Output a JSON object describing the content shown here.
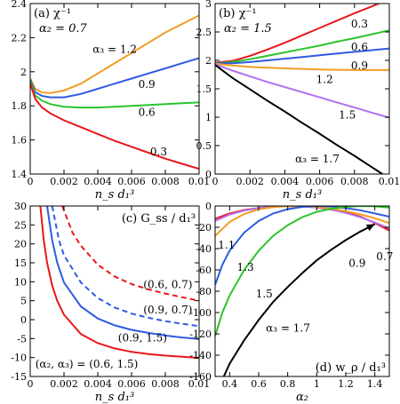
{
  "chart_data": [
    {
      "id": "a",
      "type": "line",
      "title": "(a) χ⁻¹",
      "param_label": "α₂ = 0.7",
      "xlabel": "n_s d₁³",
      "xlim": [
        0,
        0.01
      ],
      "ylim": [
        1.4,
        2.4
      ],
      "xticks": [
        0,
        0.002,
        0.004,
        0.006,
        0.008,
        0.01
      ],
      "xtick_labels": [
        "0",
        "0.002",
        "0.004",
        "0.006",
        "0.008",
        "0.01"
      ],
      "yticks": [
        1.4,
        1.6,
        1.8,
        2.0,
        2.2,
        2.4
      ],
      "ytick_labels": [
        "1.4",
        "1.6",
        "1.8",
        "2",
        "2.2",
        "2.4"
      ],
      "series": [
        {
          "name": "α₃ = 1.2",
          "color": "#f39c1f",
          "x": [
            0,
            0.0003,
            0.0007,
            0.0012,
            0.002,
            0.003,
            0.004,
            0.005,
            0.006,
            0.007,
            0.008,
            0.009,
            0.01
          ],
          "y": [
            1.96,
            1.9,
            1.878,
            1.875,
            1.89,
            1.93,
            1.99,
            2.05,
            2.11,
            2.17,
            2.23,
            2.28,
            2.33
          ]
        },
        {
          "name": "0.9",
          "color": "#2d5be3",
          "x": [
            0,
            0.0003,
            0.0007,
            0.0012,
            0.002,
            0.003,
            0.004,
            0.005,
            0.006,
            0.007,
            0.008,
            0.009,
            0.01
          ],
          "y": [
            1.95,
            1.88,
            1.858,
            1.85,
            1.85,
            1.87,
            1.9,
            1.93,
            1.96,
            1.99,
            2.02,
            2.05,
            2.08
          ]
        },
        {
          "name": "0.6",
          "color": "#2bc42b",
          "x": [
            0,
            0.0003,
            0.0007,
            0.0012,
            0.002,
            0.003,
            0.004,
            0.005,
            0.006,
            0.007,
            0.008,
            0.009,
            0.01
          ],
          "y": [
            1.94,
            1.86,
            1.83,
            1.81,
            1.795,
            1.79,
            1.79,
            1.795,
            1.8,
            1.805,
            1.81,
            1.815,
            1.82
          ]
        },
        {
          "name": "0.3",
          "color": "#e8171b",
          "x": [
            0,
            0.0003,
            0.0007,
            0.0012,
            0.002,
            0.003,
            0.004,
            0.005,
            0.006,
            0.007,
            0.008,
            0.009,
            0.01
          ],
          "y": [
            1.93,
            1.84,
            1.79,
            1.755,
            1.715,
            1.675,
            1.635,
            1.595,
            1.56,
            1.525,
            1.49,
            1.46,
            1.43
          ]
        }
      ],
      "series_labels": [
        {
          "text": "α₃ = 1.2",
          "x": 0.0037,
          "y": 2.11
        },
        {
          "text": "0.9",
          "x": 0.0064,
          "y": 1.905
        },
        {
          "text": "0.6",
          "x": 0.0064,
          "y": 1.74
        },
        {
          "text": "0.3",
          "x": 0.0071,
          "y": 1.51
        }
      ]
    },
    {
      "id": "b",
      "type": "line",
      "title": "(b) χ⁻¹",
      "param_label": "α₂ = 1.5",
      "xlabel": "n_s d₁³",
      "xlim": [
        0,
        0.01
      ],
      "ylim": [
        0,
        3
      ],
      "xticks": [
        0,
        0.002,
        0.004,
        0.006,
        0.008,
        0.01
      ],
      "xtick_labels": [
        "0",
        "0.002",
        "0.004",
        "0.006",
        "0.008",
        "0.01"
      ],
      "yticks": [
        0,
        0.5,
        1.0,
        1.5,
        2.0,
        2.5,
        3.0
      ],
      "ytick_labels": [
        "0",
        "0.5",
        "1",
        "1.5",
        "2",
        "2.5",
        "3"
      ],
      "series": [
        {
          "name": "0.3",
          "color": "#e8171b",
          "x": [
            0,
            0.001,
            0.002,
            0.003,
            0.004,
            0.005,
            0.006,
            0.007,
            0.008,
            0.009,
            0.01
          ],
          "y": [
            1.96,
            1.99,
            2.08,
            2.19,
            2.31,
            2.44,
            2.57,
            2.7,
            2.83,
            2.95,
            3.08
          ]
        },
        {
          "name": "0.6",
          "color": "#2bc42b",
          "x": [
            0,
            0.001,
            0.002,
            0.003,
            0.004,
            0.005,
            0.006,
            0.007,
            0.008,
            0.009,
            0.01
          ],
          "y": [
            1.95,
            1.97,
            2.02,
            2.08,
            2.14,
            2.2,
            2.26,
            2.33,
            2.39,
            2.46,
            2.53
          ]
        },
        {
          "name": "0.9",
          "color": "#2d5be3",
          "x": [
            0,
            0.001,
            0.002,
            0.003,
            0.004,
            0.005,
            0.006,
            0.007,
            0.008,
            0.009,
            0.01
          ],
          "y": [
            1.95,
            1.95,
            1.97,
            2.0,
            2.03,
            2.06,
            2.09,
            2.12,
            2.15,
            2.18,
            2.21
          ]
        },
        {
          "name": "1.2",
          "color": "#f39c1f",
          "x": [
            0,
            0.001,
            0.002,
            0.003,
            0.004,
            0.005,
            0.006,
            0.007,
            0.008,
            0.009,
            0.01
          ],
          "y": [
            1.94,
            1.91,
            1.885,
            1.87,
            1.86,
            1.85,
            1.84,
            1.835,
            1.83,
            1.83,
            1.83
          ]
        },
        {
          "name": "1.5",
          "color": "#b36ff0",
          "x": [
            0,
            0.001,
            0.002,
            0.003,
            0.004,
            0.005,
            0.006,
            0.007,
            0.008,
            0.009,
            0.01
          ],
          "y": [
            1.93,
            1.82,
            1.72,
            1.62,
            1.53,
            1.44,
            1.35,
            1.26,
            1.17,
            1.08,
            0.99
          ]
        },
        {
          "name": "α₃ = 1.7",
          "color": "#000000",
          "x": [
            0,
            0.001,
            0.002,
            0.003,
            0.004,
            0.005,
            0.006,
            0.007,
            0.008,
            0.009,
            0.0096
          ],
          "y": [
            1.92,
            1.69,
            1.49,
            1.29,
            1.1,
            0.9,
            0.71,
            0.51,
            0.32,
            0.12,
            0.0
          ]
        }
      ],
      "series_labels": [
        {
          "text": "0.3",
          "x": 0.0078,
          "y": 2.58
        },
        {
          "text": "0.6",
          "x": 0.0078,
          "y": 2.17
        },
        {
          "text": "0.9",
          "x": 0.0078,
          "y": 1.84
        },
        {
          "text": "1.2",
          "x": 0.0058,
          "y": 1.6
        },
        {
          "text": "1.5",
          "x": 0.0071,
          "y": 0.98
        },
        {
          "text": "α₃ = 1.7",
          "x": 0.0046,
          "y": 0.2
        }
      ]
    },
    {
      "id": "c",
      "type": "line",
      "title": "(c) G_ss / d₁³",
      "param_label": "(α₂, α₃) = (0.6, 1.5)",
      "xlabel": "n_s d₁³",
      "xlim": [
        0,
        0.01
      ],
      "ylim": [
        -15,
        30
      ],
      "xticks": [
        0,
        0.002,
        0.004,
        0.006,
        0.008,
        0.01
      ],
      "xtick_labels": [
        "0",
        "0.002",
        "0.004",
        "0.006",
        "0.008",
        "0.01"
      ],
      "yticks": [
        -15,
        -10,
        -5,
        0,
        5,
        10,
        15,
        20,
        25,
        30
      ],
      "ytick_labels": [
        "-15",
        "-10",
        "-5",
        "0",
        "5",
        "10",
        "15",
        "20",
        "25",
        "30"
      ],
      "series": [
        {
          "name": "(0.6, 0.7)",
          "color": "#e8171b",
          "dashed": true,
          "x": [
            0.0019,
            0.0025,
            0.003,
            0.004,
            0.005,
            0.006,
            0.007,
            0.008,
            0.009,
            0.01
          ],
          "y": [
            30,
            23,
            19.5,
            14.5,
            11.4,
            9.4,
            8.0,
            6.9,
            5.9,
            5.0
          ]
        },
        {
          "name": "(0.9, 0.7)",
          "color": "#2d5be3",
          "dashed": true,
          "x": [
            0.0013,
            0.0017,
            0.002,
            0.003,
            0.004,
            0.005,
            0.006,
            0.007,
            0.008,
            0.009,
            0.01
          ],
          "y": [
            30,
            21,
            17,
            9.8,
            5.7,
            3.2,
            1.6,
            0.5,
            -0.4,
            -1.1,
            -1.7
          ]
        },
        {
          "name": "(0.9, 1.5)",
          "color": "#2d5be3",
          "dashed": false,
          "x": [
            0.001,
            0.0013,
            0.0016,
            0.002,
            0.003,
            0.004,
            0.005,
            0.006,
            0.007,
            0.008,
            0.009,
            0.01
          ],
          "y": [
            30,
            21,
            15,
            9.8,
            3.5,
            0.3,
            -1.5,
            -2.7,
            -3.5,
            -4.2,
            -4.7,
            -5.1
          ]
        },
        {
          "name": "(0.6, 1.5)",
          "color": "#e8171b",
          "dashed": false,
          "x": [
            0.0006,
            0.0008,
            0.001,
            0.0013,
            0.0016,
            0.002,
            0.003,
            0.004,
            0.005,
            0.006,
            0.007,
            0.008,
            0.009,
            0.01
          ],
          "y": [
            30,
            21,
            15,
            9,
            5,
            1.3,
            -3.8,
            -6.2,
            -7.6,
            -8.5,
            -9.1,
            -9.5,
            -9.8,
            -10.1
          ]
        }
      ],
      "series_labels": [
        {
          "text": "(0.6, 0.7)",
          "x": 0.0067,
          "y": 8.3
        },
        {
          "text": "(0.9, 0.7)",
          "x": 0.0067,
          "y": 1.6
        },
        {
          "text": "(0.9, 1.5)",
          "x": 0.0052,
          "y": -5.7
        },
        {
          "text": "(α₂, α₃) = (0.6, 1.5)",
          "x": 0.0003,
          "y": -12.7
        }
      ]
    },
    {
      "id": "d",
      "type": "line",
      "title": "(d) w_ρ / d₁³",
      "xlabel": "α₂",
      "xlim": [
        0.3,
        1.5
      ],
      "ylim": [
        -160,
        0
      ],
      "xticks": [
        0.4,
        0.6,
        0.8,
        1.0,
        1.2,
        1.4
      ],
      "xtick_labels": [
        "0.4",
        "0.6",
        "0.8",
        "1",
        "1.2",
        "1.4"
      ],
      "yticks": [
        -160,
        -140,
        -120,
        -100,
        -80,
        -60,
        -40,
        -20,
        0
      ],
      "ytick_labels": [
        "-160",
        "-140",
        "-120",
        "-100",
        "-80",
        "-60",
        "-40",
        "-20",
        "0"
      ],
      "series": [
        {
          "name": "0.7",
          "color": "#e8171b",
          "x": [
            0.3,
            0.4,
            0.5,
            0.6,
            0.7,
            0.8,
            0.9,
            1.0,
            1.1,
            1.2,
            1.3,
            1.4,
            1.5
          ],
          "y": [
            -12,
            -7,
            -3.8,
            -1.8,
            -0.6,
            0,
            -0.2,
            -1.2,
            -3,
            -6,
            -10,
            -16,
            -23
          ]
        },
        {
          "name": "0.9",
          "color": "#b36ff0",
          "x": [
            0.3,
            0.4,
            0.5,
            0.6,
            0.7,
            0.8,
            0.9,
            1.0,
            1.1,
            1.2,
            1.3,
            1.4,
            1.5
          ],
          "y": [
            -14,
            -8,
            -4.3,
            -2,
            -0.6,
            0,
            -0.3,
            -1.5,
            -3.5,
            -6.5,
            -10.5,
            -15.5,
            -21
          ]
        },
        {
          "name": "1.1",
          "color": "#f39c1f",
          "x": [
            0.3,
            0.4,
            0.5,
            0.6,
            0.7,
            0.8,
            0.9,
            1.0,
            1.1,
            1.2,
            1.3,
            1.4,
            1.5
          ],
          "y": [
            -28,
            -15,
            -7.5,
            -3.2,
            -1,
            -0.1,
            -0.2,
            -1,
            -2.5,
            -4.8,
            -7.8,
            -11.5,
            -16
          ]
        },
        {
          "name": "1.3",
          "color": "#2d5be3",
          "x": [
            0.3,
            0.35,
            0.4,
            0.5,
            0.6,
            0.7,
            0.8,
            0.9,
            1.0,
            1.1,
            1.2,
            1.3,
            1.4,
            1.5
          ],
          "y": [
            -74,
            -55,
            -42,
            -25,
            -14,
            -7,
            -3,
            -0.8,
            0,
            -0.5,
            -2,
            -4,
            -7,
            -10
          ]
        },
        {
          "name": "1.5",
          "color": "#2bc42b",
          "x": [
            0.3,
            0.35,
            0.4,
            0.5,
            0.6,
            0.7,
            0.8,
            0.9,
            1.0,
            1.1,
            1.2,
            1.3,
            1.4,
            1.5
          ],
          "y": [
            -122,
            -100,
            -84,
            -60,
            -42,
            -28,
            -18,
            -10.5,
            -5.5,
            -2.5,
            -0.8,
            0,
            -0.3,
            -1.5
          ]
        },
        {
          "name": "α₃ = 1.7",
          "color": "#000000",
          "x": [
            0.36,
            0.4,
            0.5,
            0.6,
            0.7,
            0.8,
            0.9,
            1.0,
            1.1,
            1.2,
            1.3,
            1.4
          ],
          "y": [
            -160,
            -148,
            -126,
            -107,
            -90,
            -76,
            -63,
            -51,
            -41,
            -32,
            -24,
            -17
          ]
        }
      ],
      "series_labels": [
        {
          "text": "1.1",
          "x": 0.32,
          "y": -40
        },
        {
          "text": "1.3",
          "x": 0.45,
          "y": -61
        },
        {
          "text": "1.5",
          "x": 0.58,
          "y": -86
        },
        {
          "text": "0.9",
          "x": 1.22,
          "y": -57
        },
        {
          "text": "0.7",
          "x": 1.41,
          "y": -51
        },
        {
          "text": "α₃ = 1.7",
          "x": 0.65,
          "y": -118
        }
      ]
    }
  ]
}
